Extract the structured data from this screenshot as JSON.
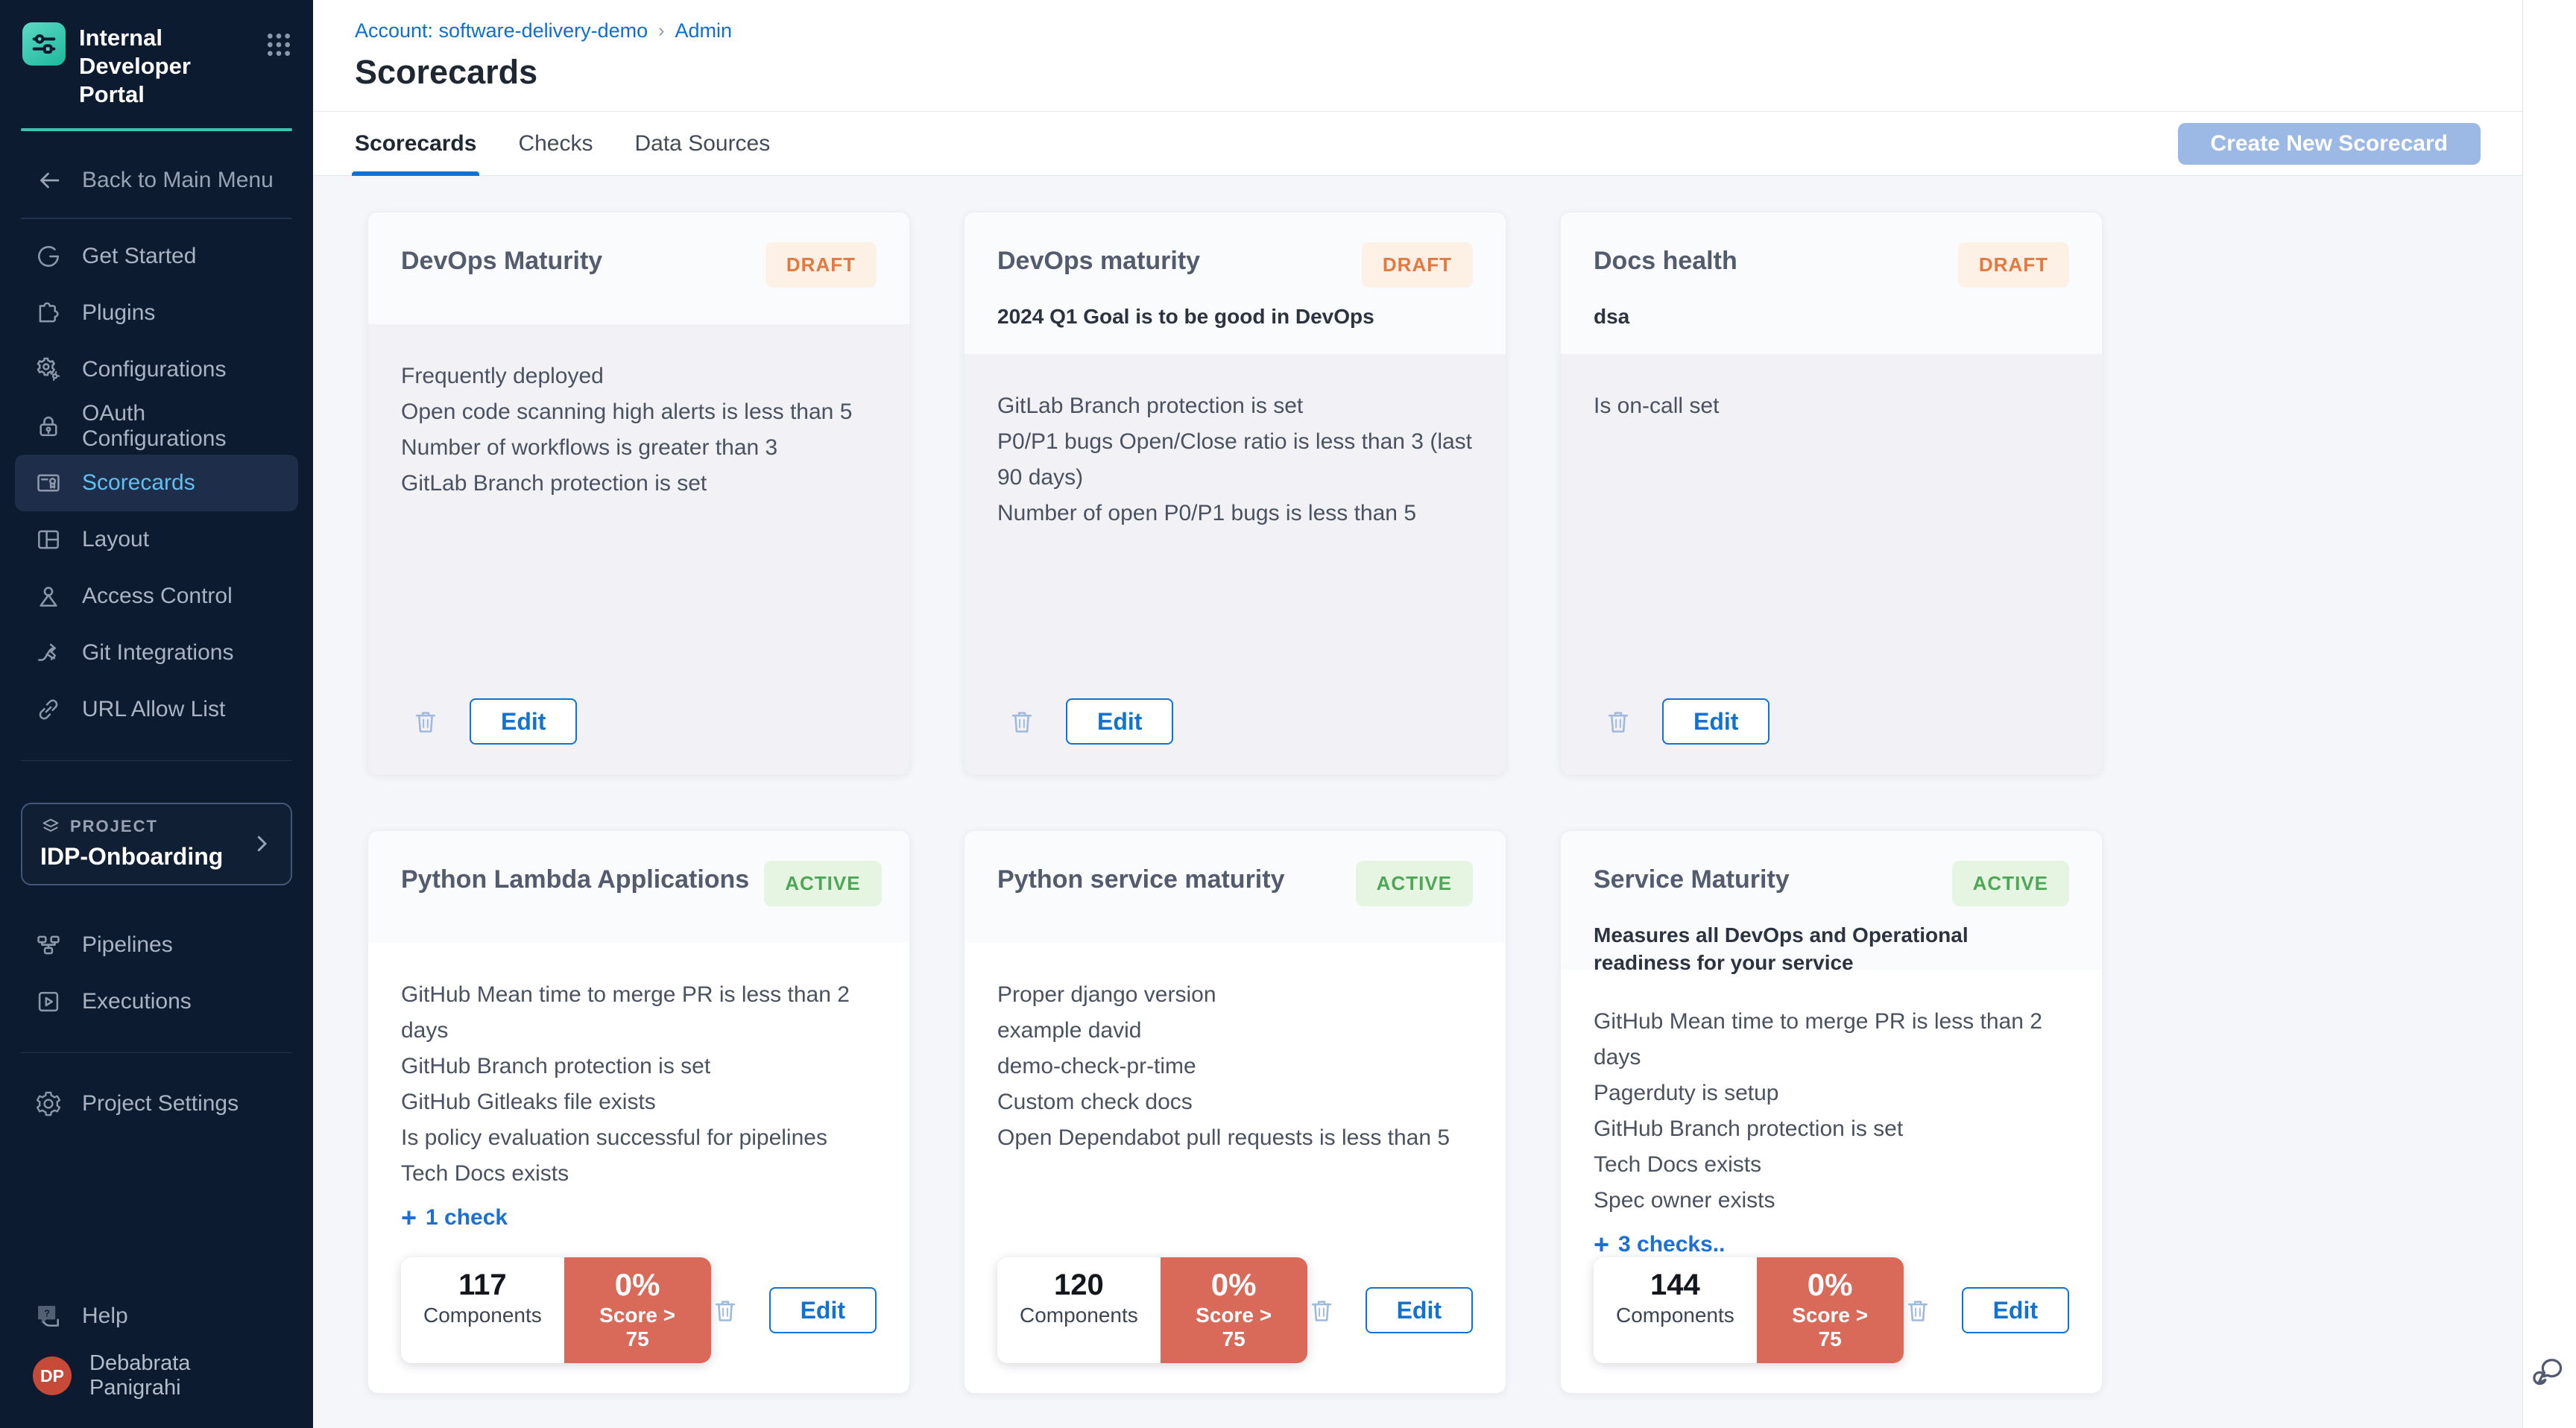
{
  "colors": {
    "sidebar_bg": "#0c1b30",
    "sidebar_active_text": "#5fc1ef",
    "teal_accent": "#3cc2ae",
    "primary_blue": "#1272d2",
    "link_blue": "#1b6fd6",
    "draft_text": "#e4793f",
    "draft_bg": "#fdf0e5",
    "active_text": "#4ea757",
    "active_bg": "#e6f4e2",
    "score_red": "#d96a59",
    "avatar_red": "#c64a37",
    "create_button_bg": "#9cb9e6",
    "content_bg": "#f5f6fa"
  },
  "sidebar": {
    "app_title": "Internal Developer Portal",
    "back_label": "Back to Main Menu",
    "nav": [
      {
        "id": "get-started",
        "icon": "get-started-icon",
        "label": "Get Started"
      },
      {
        "id": "plugins",
        "icon": "plugins-icon",
        "label": "Plugins"
      },
      {
        "id": "configurations",
        "icon": "configurations-icon",
        "label": "Configurations"
      },
      {
        "id": "oauth-configurations",
        "icon": "oauth-icon",
        "label": "OAuth Configurations"
      },
      {
        "id": "scorecards",
        "icon": "scorecards-icon",
        "label": "Scorecards",
        "active": true
      },
      {
        "id": "layout",
        "icon": "layout-icon",
        "label": "Layout"
      },
      {
        "id": "access-control",
        "icon": "access-control-icon",
        "label": "Access Control"
      },
      {
        "id": "git-integrations",
        "icon": "git-integrations-icon",
        "label": "Git Integrations"
      },
      {
        "id": "url-allow-list",
        "icon": "url-allow-list-icon",
        "label": "URL Allow List"
      }
    ],
    "project": {
      "eyebrow": "PROJECT",
      "name": "IDP-Onboarding"
    },
    "project_nav": [
      {
        "id": "pipelines",
        "icon": "pipelines-icon",
        "label": "Pipelines"
      },
      {
        "id": "executions",
        "icon": "executions-icon",
        "label": "Executions"
      }
    ],
    "settings_label": "Project Settings",
    "help_label": "Help",
    "user": {
      "initials": "DP",
      "name": "Debabrata Panigrahi"
    }
  },
  "header": {
    "breadcrumb": {
      "account_link": "Account: software-delivery-demo",
      "separator": "›",
      "current": "Admin"
    },
    "page_title": "Scorecards",
    "tabs": [
      {
        "label": "Scorecards",
        "active": true
      },
      {
        "label": "Checks",
        "active": false
      },
      {
        "label": "Data Sources",
        "active": false
      }
    ],
    "create_button_label": "Create New Scorecard"
  },
  "card_actions": {
    "edit_label": "Edit"
  },
  "cards": [
    {
      "title": "DevOps Maturity",
      "status": "DRAFT",
      "description": null,
      "checks": [
        "Frequently deployed",
        "Open code scanning high alerts is less than 5",
        "Number of workflows is greater than 3",
        "GitLab Branch protection is set"
      ],
      "more_label": null,
      "stats": null
    },
    {
      "title": "DevOps maturity",
      "status": "DRAFT",
      "description": "2024 Q1 Goal is to be good in DevOps",
      "checks": [
        "GitLab Branch protection is set",
        "P0/P1 bugs Open/Close ratio is less than 3 (last 90 days)",
        "Number of open P0/P1 bugs is less than 5"
      ],
      "more_label": null,
      "stats": null
    },
    {
      "title": "Docs health",
      "status": "DRAFT",
      "description": "dsa",
      "checks": [
        "Is on-call set"
      ],
      "more_label": null,
      "stats": null
    },
    {
      "title": "Python Lambda Applications",
      "status": "ACTIVE",
      "description": null,
      "checks": [
        "GitHub Mean time to merge PR is less than 2 days",
        "GitHub Branch protection is set",
        "GitHub Gitleaks file exists",
        "Is policy evaluation successful for pipelines",
        "Tech Docs exists"
      ],
      "more_label": "1 check",
      "stats": {
        "components_value": "117",
        "components_label": "Components",
        "score_value": "0%",
        "score_label": "Score > 75"
      }
    },
    {
      "title": "Python service maturity",
      "status": "ACTIVE",
      "description": null,
      "checks": [
        "Proper django version",
        "example david",
        "demo-check-pr-time",
        "Custom check docs",
        "Open Dependabot pull requests is less than 5"
      ],
      "more_label": null,
      "stats": {
        "components_value": "120",
        "components_label": "Components",
        "score_value": "0%",
        "score_label": "Score > 75"
      }
    },
    {
      "title": "Service Maturity",
      "status": "ACTIVE",
      "description": "Measures all DevOps and Operational readiness for your service",
      "checks": [
        "GitHub Mean time to merge PR is less than 2 days",
        "Pagerduty is setup",
        "GitHub Branch protection is set",
        "Tech Docs exists",
        "Spec owner exists"
      ],
      "more_label": "3 checks..",
      "stats": {
        "components_value": "144",
        "components_label": "Components",
        "score_value": "0%",
        "score_label": "Score > 75"
      }
    }
  ]
}
